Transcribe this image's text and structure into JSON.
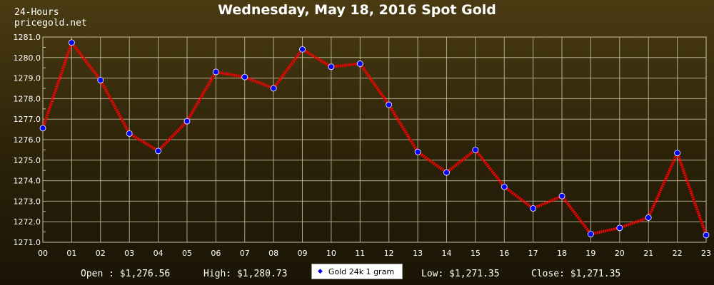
{
  "header": {
    "title": "Wednesday, May 18, 2016 Spot Gold",
    "period": "24-Hours",
    "site": "pricegold.net"
  },
  "footer": {
    "open": "Open : $1,276.56",
    "high": "High: $1,280.73",
    "low": "Low: $1,271.35",
    "close": "Close: $1,271.35",
    "legend_label": "Gold 24k 1 gram"
  },
  "colors": {
    "line": "#ff0000",
    "marker": "#0000ff",
    "grid": "#c8c0a0",
    "text": "#ffffff"
  },
  "chart_data": {
    "type": "line",
    "title": "Wednesday, May 18, 2016 Spot Gold",
    "xlabel": "",
    "ylabel": "",
    "ylim": [
      1271.0,
      1281.0
    ],
    "y_ticks": [
      "1271.0",
      "1272.0",
      "1273.0",
      "1274.0",
      "1275.0",
      "1276.0",
      "1277.0",
      "1278.0",
      "1279.0",
      "1280.0",
      "1281.0"
    ],
    "categories": [
      "00",
      "01",
      "02",
      "03",
      "04",
      "05",
      "06",
      "07",
      "08",
      "09",
      "10",
      "11",
      "12",
      "13",
      "14",
      "15",
      "16",
      "17",
      "18",
      "19",
      "20",
      "21",
      "22",
      "23"
    ],
    "grid": true,
    "legend": "bottom-center",
    "series": [
      {
        "name": "Gold 24k 1 gram",
        "values": [
          1276.56,
          1280.73,
          1278.9,
          1276.3,
          1275.45,
          1276.9,
          1279.3,
          1279.05,
          1278.5,
          1280.4,
          1279.55,
          1279.7,
          1277.7,
          1275.4,
          1274.4,
          1275.5,
          1273.7,
          1272.65,
          1273.25,
          1271.4,
          1271.7,
          1272.2,
          1275.35,
          1271.35
        ]
      }
    ]
  }
}
